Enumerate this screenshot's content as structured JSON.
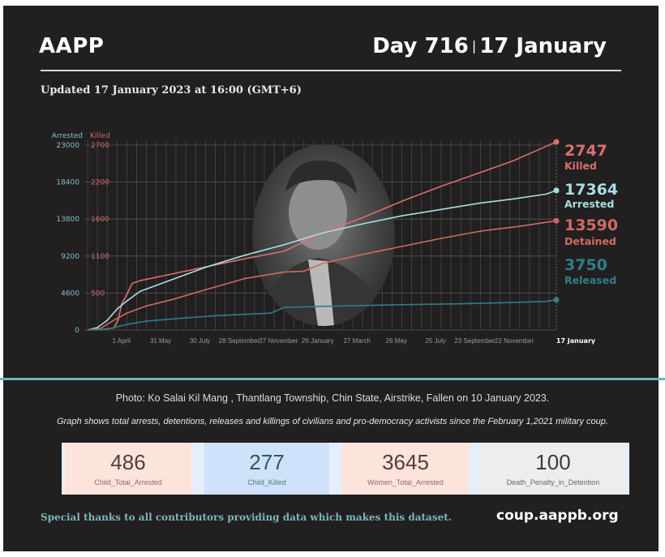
{
  "header": {
    "brand": "AAPP",
    "day_label": "Day 716",
    "separator": "|",
    "date_label": "17 January",
    "updated": "Updated 17 January 2023 at 16:00 (GMT+6)"
  },
  "colors": {
    "background": "#221f20",
    "killed": "#d9706d",
    "arrested": "#a8dfe4",
    "detained": "#d06a64",
    "released": "#2f7f87",
    "arrested_axis": "#7fc0c8",
    "killed_axis": "#d06a6a",
    "divider": "#6fb3bd"
  },
  "chart_data": {
    "type": "line",
    "title": "",
    "xlabel": "",
    "ylabel_left": "Arrested",
    "ylabel_right": "Killed",
    "x_range_days": [
      0,
      716
    ],
    "y_ticks_arrested": [
      0,
      4600,
      9200,
      13800,
      18400,
      23000
    ],
    "y_ticks_killed": [
      "",
      "500",
      "1100",
      "1600",
      "2200",
      "2700"
    ],
    "ylim_arrested": [
      0,
      23000
    ],
    "ylim_killed": [
      0,
      2700
    ],
    "grid": true,
    "x_ticks": [
      {
        "day": 59,
        "label": "1 April"
      },
      {
        "day": 119,
        "label": "31 May"
      },
      {
        "day": 179,
        "label": "30 July"
      },
      {
        "day": 239,
        "label": "28 September"
      },
      {
        "day": 299,
        "label": "27 November"
      },
      {
        "day": 359,
        "label": "26 January"
      },
      {
        "day": 419,
        "label": "27 March"
      },
      {
        "day": 479,
        "label": "26 May"
      },
      {
        "day": 539,
        "label": "25 July"
      },
      {
        "day": 599,
        "label": "23 September"
      },
      {
        "day": 659,
        "label": "22 November"
      },
      {
        "day": 716,
        "label": "17 January",
        "emphasis": true
      }
    ],
    "series": [
      {
        "name": "Killed",
        "axis": "killed",
        "color": "#d9706d",
        "final_value": 2747,
        "final_label": "Killed",
        "points": [
          [
            0,
            0
          ],
          [
            25,
            10
          ],
          [
            40,
            30
          ],
          [
            47,
            150
          ],
          [
            52,
            380
          ],
          [
            60,
            520
          ],
          [
            68,
            680
          ],
          [
            80,
            720
          ],
          [
            120,
            800
          ],
          [
            180,
            920
          ],
          [
            240,
            1040
          ],
          [
            300,
            1150
          ],
          [
            360,
            1420
          ],
          [
            420,
            1640
          ],
          [
            480,
            1880
          ],
          [
            540,
            2100
          ],
          [
            600,
            2300
          ],
          [
            650,
            2470
          ],
          [
            700,
            2680
          ],
          [
            716,
            2747
          ]
        ]
      },
      {
        "name": "Arrested",
        "axis": "arrested",
        "color": "#a8dfe4",
        "final_value": 17364,
        "final_label": "Arrested",
        "points": [
          [
            0,
            0
          ],
          [
            15,
            300
          ],
          [
            30,
            1200
          ],
          [
            45,
            2600
          ],
          [
            60,
            3600
          ],
          [
            80,
            4800
          ],
          [
            120,
            6000
          ],
          [
            180,
            7800
          ],
          [
            240,
            9300
          ],
          [
            300,
            10600
          ],
          [
            360,
            12100
          ],
          [
            420,
            13200
          ],
          [
            480,
            14200
          ],
          [
            540,
            15000
          ],
          [
            600,
            15800
          ],
          [
            650,
            16300
          ],
          [
            700,
            16900
          ],
          [
            716,
            17364
          ]
        ]
      },
      {
        "name": "Detained",
        "axis": "arrested",
        "color": "#d06a64",
        "final_value": 13590,
        "final_label": "Detained",
        "points": [
          [
            0,
            0
          ],
          [
            20,
            200
          ],
          [
            40,
            1200
          ],
          [
            60,
            2100
          ],
          [
            90,
            3000
          ],
          [
            130,
            3800
          ],
          [
            180,
            5000
          ],
          [
            240,
            6400
          ],
          [
            300,
            7200
          ],
          [
            330,
            7300
          ],
          [
            360,
            8300
          ],
          [
            420,
            9400
          ],
          [
            480,
            10400
          ],
          [
            540,
            11400
          ],
          [
            600,
            12300
          ],
          [
            660,
            12900
          ],
          [
            716,
            13590
          ]
        ]
      },
      {
        "name": "Released",
        "axis": "arrested",
        "color": "#2f7f87",
        "final_value": 3750,
        "final_label": "Released",
        "points": [
          [
            0,
            0
          ],
          [
            30,
            100
          ],
          [
            60,
            700
          ],
          [
            90,
            1100
          ],
          [
            150,
            1500
          ],
          [
            200,
            1800
          ],
          [
            280,
            2100
          ],
          [
            300,
            2800
          ],
          [
            360,
            2950
          ],
          [
            420,
            3050
          ],
          [
            480,
            3150
          ],
          [
            560,
            3250
          ],
          [
            640,
            3400
          ],
          [
            700,
            3550
          ],
          [
            716,
            3750
          ]
        ]
      }
    ]
  },
  "caption": {
    "photo": "Photo:  Ko Salai Kil Mang , Thantlang Township, Chin State, Airstrike, Fallen on 10 January 2023.",
    "graph_note": "Graph shows total arrests, detentions, releases and killings of civilians and pro-democracy activists since the February 1,2021 military coup."
  },
  "kpis": [
    {
      "value": "486",
      "label": "Child_Total_Arrested"
    },
    {
      "value": "277",
      "label": "Child_Killed"
    },
    {
      "value": "3645",
      "label": "Women_Total_Arrested"
    },
    {
      "value": "100",
      "label": "Death_Penalty_in_Detention"
    }
  ],
  "footer": {
    "thanks": "Special thanks to all contributors providing data which makes this dataset.",
    "site": "coup.aappb.org"
  }
}
